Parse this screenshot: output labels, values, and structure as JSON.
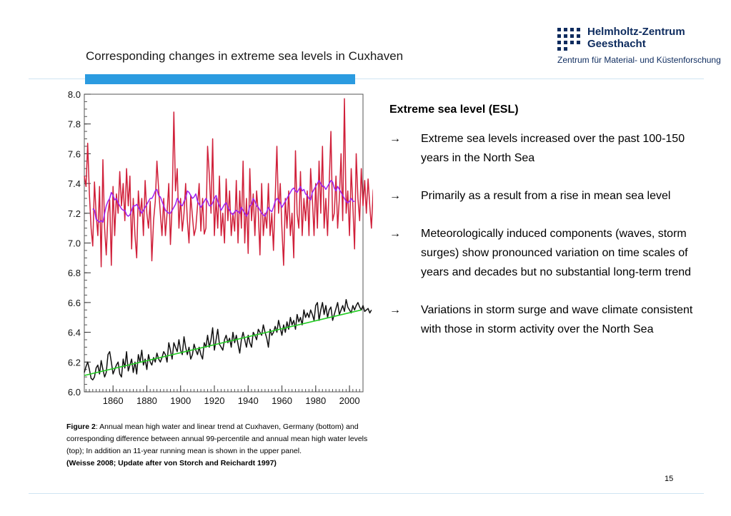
{
  "header": {
    "title": "Corresponding changes in extreme sea levels in Cuxhaven",
    "logo_line1": "Helmholtz-Zentrum",
    "logo_line2": "Geesthacht",
    "logo_sub": "Zentrum für Material- und Küstenforschung"
  },
  "chart_data": {
    "type": "line",
    "title": "",
    "xlabel": "",
    "ylabel": "",
    "xlim": [
      1843,
      2008
    ],
    "ylim": [
      6.0,
      8.0
    ],
    "xticks": [
      1860,
      1880,
      1900,
      1920,
      1940,
      1960,
      1980,
      2000
    ],
    "yticks": [
      "6.0",
      "6.2",
      "6.4",
      "6.6",
      "6.8",
      "7.0",
      "7.2",
      "7.4",
      "7.6",
      "7.8",
      "8.0"
    ],
    "grid": false,
    "legend": "none",
    "series": [
      {
        "color": "#d0203a",
        "start_year": 1843,
        "values": [
          7.45,
          7.38,
          7.67,
          7.33,
          7.1,
          6.98,
          7.41,
          7.2,
          7.05,
          7.38,
          6.84,
          7.56,
          7.1,
          6.92,
          7.2,
          7.29,
          6.85,
          7.38,
          7.05,
          7.33,
          7.2,
          7.48,
          7.25,
          7.4,
          7.15,
          7.5,
          7.25,
          7.45,
          6.96,
          7.3,
          7.05,
          6.9,
          7.35,
          7.18,
          7.3,
          7.05,
          7.42,
          7.2,
          7.1,
          7.28,
          6.88,
          7.15,
          7.28,
          7.55,
          7.36,
          7.2,
          7.05,
          7.3,
          7.05,
          7.2,
          7.4,
          6.99,
          7.25,
          7.88,
          7.35,
          7.5,
          7.1,
          7.3,
          7.08,
          7.2,
          7.4,
          7.15,
          7.0,
          7.32,
          7.18,
          7.05,
          7.1,
          7.25,
          7.4,
          7.08,
          7.3,
          7.06,
          7.1,
          7.65,
          7.46,
          7.2,
          7.7,
          7.05,
          7.3,
          7.1,
          7.45,
          7.05,
          7.2,
          7.0,
          7.43,
          7.15,
          7.35,
          7.05,
          7.2,
          7.08,
          7.42,
          7.0,
          7.35,
          7.1,
          7.55,
          7.0,
          7.3,
          6.93,
          7.5,
          7.15,
          7.33,
          7.05,
          7.35,
          7.2,
          6.92,
          7.4,
          7.05,
          7.2,
          7.1,
          7.4,
          7.05,
          7.2,
          6.95,
          7.3,
          7.65,
          7.2,
          7.4,
          7.1,
          6.85,
          7.3,
          7.1,
          7.35,
          7.05,
          7.2,
          6.9,
          7.62,
          7.2,
          7.1,
          7.48,
          7.05,
          7.3,
          7.15,
          7.35,
          7.05,
          7.5,
          7.3,
          7.05,
          7.4,
          7.1,
          7.55,
          7.2,
          7.65,
          7.1,
          7.3,
          7.05,
          7.4,
          7.75,
          7.15,
          7.2,
          7.45,
          7.1,
          7.3,
          7.6,
          7.15,
          7.97,
          7.2,
          7.35,
          7.05,
          7.5,
          7.25,
          6.96,
          7.6,
          7.3,
          7.15,
          7.5,
          7.25,
          7.42,
          7.2,
          7.43,
          7.25,
          7.1,
          7.35,
          7.42,
          7.23
        ]
      },
      {
        "color": "#a020f0",
        "start_year": 1848,
        "values": [
          7.23,
          7.22,
          7.16,
          7.15,
          7.14,
          7.15,
          7.14,
          7.2,
          7.25,
          7.28,
          7.3,
          7.34,
          7.32,
          7.29,
          7.3,
          7.27,
          7.25,
          7.23,
          7.22,
          7.22,
          7.19,
          7.18,
          7.19,
          7.22,
          7.25,
          7.25,
          7.26,
          7.24,
          7.22,
          7.2,
          7.22,
          7.24,
          7.26,
          7.28,
          7.3,
          7.3,
          7.32,
          7.35,
          7.36,
          7.32,
          7.31,
          7.28,
          7.25,
          7.22,
          7.21,
          7.2,
          7.2,
          7.22,
          7.24,
          7.26,
          7.3,
          7.28,
          7.26,
          7.25,
          7.28,
          7.3,
          7.35,
          7.34,
          7.32,
          7.3,
          7.31,
          7.33,
          7.28,
          7.26,
          7.24,
          7.26,
          7.28,
          7.3,
          7.28,
          7.25,
          7.25,
          7.27,
          7.3,
          7.32,
          7.28,
          7.25,
          7.22,
          7.24,
          7.26,
          7.27,
          7.24,
          7.22,
          7.2,
          7.19,
          7.21,
          7.22,
          7.21,
          7.2,
          7.24,
          7.22,
          7.2,
          7.18,
          7.2,
          7.25,
          7.26,
          7.3,
          7.28,
          7.25,
          7.24,
          7.22,
          7.2,
          7.19,
          7.18,
          7.21,
          7.24,
          7.22,
          7.21,
          7.24,
          7.28,
          7.3,
          7.29,
          7.27,
          7.24,
          7.26,
          7.28,
          7.3,
          7.32,
          7.34,
          7.36,
          7.37,
          7.35,
          7.34,
          7.36,
          7.38,
          7.35,
          7.36,
          7.33,
          7.32,
          7.3,
          7.29,
          7.34,
          7.36,
          7.38,
          7.4,
          7.42,
          7.4,
          7.38,
          7.38,
          7.36,
          7.38,
          7.4,
          7.42,
          7.41,
          7.37,
          7.35,
          7.38,
          7.36,
          7.34,
          7.32,
          7.3,
          7.28,
          7.27,
          7.28,
          7.3,
          7.28,
          7.28
        ]
      },
      {
        "color": "#111111",
        "start_year": 1843,
        "values": [
          6.13,
          6.17,
          6.2,
          6.15,
          6.09,
          6.08,
          6.1,
          6.16,
          6.18,
          6.12,
          6.21,
          6.15,
          6.1,
          6.13,
          6.25,
          6.27,
          6.2,
          6.12,
          6.15,
          6.18,
          6.2,
          6.12,
          6.1,
          6.22,
          6.16,
          6.27,
          6.14,
          6.18,
          6.22,
          6.13,
          6.2,
          6.12,
          6.25,
          6.2,
          6.28,
          6.18,
          6.22,
          6.15,
          6.25,
          6.2,
          6.18,
          6.23,
          6.2,
          6.26,
          6.22,
          6.2,
          6.23,
          6.27,
          6.25,
          6.2,
          6.33,
          6.28,
          6.22,
          6.33,
          6.3,
          6.27,
          6.35,
          6.28,
          6.25,
          6.37,
          6.3,
          6.25,
          6.3,
          6.22,
          6.25,
          6.32,
          6.28,
          6.25,
          6.3,
          6.25,
          6.22,
          6.33,
          6.3,
          6.38,
          6.3,
          6.35,
          6.43,
          6.28,
          6.35,
          6.42,
          6.32,
          6.3,
          6.28,
          6.35,
          6.38,
          6.33,
          6.36,
          6.3,
          6.4,
          6.33,
          6.38,
          6.32,
          6.26,
          6.35,
          6.4,
          6.35,
          6.3,
          6.38,
          6.33,
          6.3,
          6.4,
          6.38,
          6.35,
          6.42,
          6.4,
          6.38,
          6.45,
          6.4,
          6.36,
          6.3,
          6.42,
          6.38,
          6.4,
          6.44,
          6.4,
          6.48,
          6.43,
          6.38,
          6.45,
          6.4,
          6.47,
          6.42,
          6.5,
          6.45,
          6.48,
          6.42,
          6.52,
          6.47,
          6.5,
          6.45,
          6.55,
          6.5,
          6.53,
          6.5,
          6.55,
          6.52,
          6.48,
          6.58,
          6.6,
          6.48,
          6.55,
          6.6,
          6.52,
          6.58,
          6.5,
          6.55,
          6.57,
          6.48,
          6.52,
          6.56,
          6.6,
          6.52,
          6.55,
          6.58,
          6.54,
          6.62,
          6.57,
          6.55,
          6.53,
          6.58,
          6.55,
          6.58,
          6.6,
          6.57,
          6.55,
          6.58,
          6.54,
          6.55,
          6.56,
          6.53,
          6.55
        ]
      },
      {
        "color": "#22cc22",
        "x": [
          1843,
          2007
        ],
        "values": [
          6.11,
          6.55
        ]
      }
    ]
  },
  "caption": {
    "label": "Figure 2",
    "text": ": Annual mean high water and linear trend at Cuxhaven, Germany (bottom) and corresponding difference between annual 99-percentile and annual mean high water levels (top); In addition an 11-year running mean is shown in the upper panel.",
    "reference": "(Weisse 2008; Update after von Storch and Reichardt 1997)"
  },
  "right_panel": {
    "heading": "Extreme sea level (ESL)",
    "bullets": [
      {
        "arrow": "→",
        "text": "Extreme sea levels increased over the past 100-150 years in the North Sea"
      },
      {
        "arrow": "→",
        "text": "Primarily as a result from a rise in mean sea level"
      },
      {
        "arrow": "→",
        "text": "Meteorologically induced components (waves, storm surges) show pronounced variation on time scales of years and decades but no substantial long-term trend"
      },
      {
        "arrow": "→",
        "text": "Variations in storm surge and wave climate consistent with those in storm activity over the North Sea"
      }
    ]
  },
  "footer": {
    "page_number": "15"
  }
}
